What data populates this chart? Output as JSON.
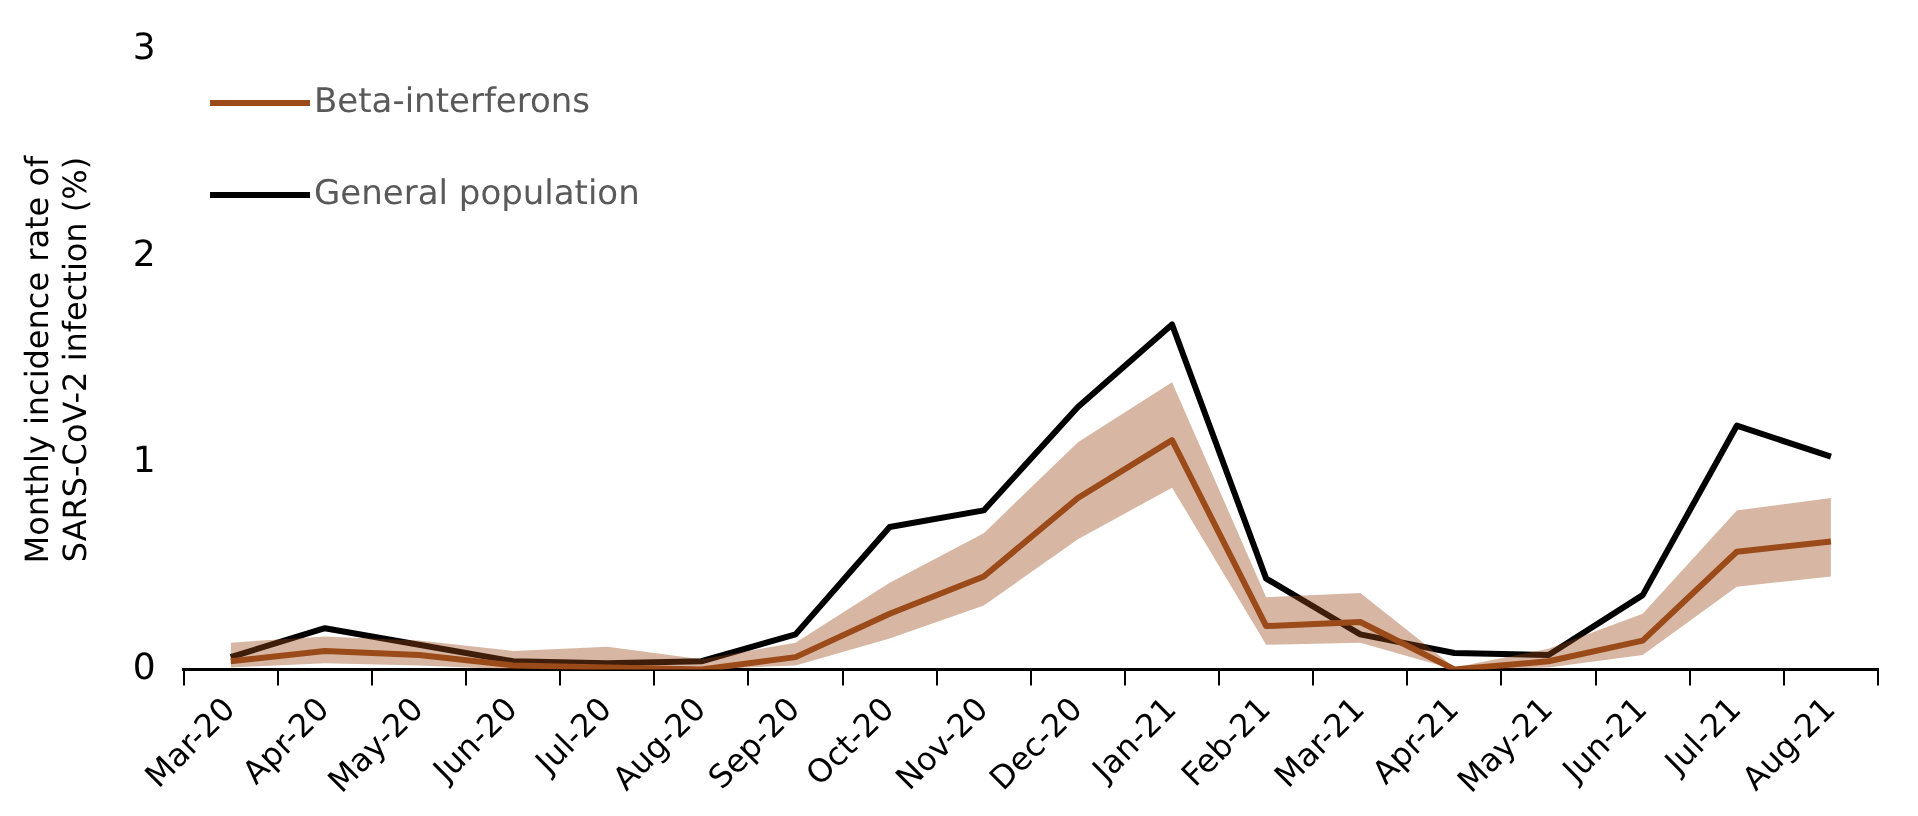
{
  "chart_data": {
    "type": "line",
    "ylabel": "Monthly incidence rate of SARS-CoV-2 infection (%)",
    "categories": [
      "Mar-20",
      "Apr-20",
      "May-20",
      "Jun-20",
      "Jul-20",
      "Aug-20",
      "Sep-20",
      "Oct-20",
      "Nov-20",
      "Dec-20",
      "Jan-21",
      "Feb-21",
      "Mar-21",
      "Apr-21",
      "May-21",
      "Jun-21",
      "Jul-21",
      "Aug-21"
    ],
    "series": [
      {
        "name": "Beta-interferons",
        "color": "#9c4a1a",
        "values": [
          0.04,
          0.09,
          0.07,
          0.02,
          0.01,
          0.0,
          0.06,
          0.27,
          0.45,
          0.83,
          1.11,
          0.21,
          0.23,
          0.0,
          0.04,
          0.14,
          0.57,
          0.62
        ],
        "lower": [
          0.01,
          0.03,
          0.02,
          0.0,
          0.0,
          0.0,
          0.02,
          0.15,
          0.31,
          0.63,
          0.88,
          0.12,
          0.13,
          0.0,
          0.01,
          0.07,
          0.4,
          0.45
        ],
        "upper": [
          0.13,
          0.16,
          0.14,
          0.09,
          0.11,
          0.05,
          0.13,
          0.42,
          0.66,
          1.1,
          1.39,
          0.35,
          0.37,
          0.01,
          0.1,
          0.27,
          0.77,
          0.83
        ]
      },
      {
        "name": "General population",
        "color": "#000000",
        "values": [
          0.06,
          0.2,
          0.12,
          0.04,
          0.03,
          0.04,
          0.17,
          0.69,
          0.77,
          1.27,
          1.67,
          0.44,
          0.17,
          0.08,
          0.07,
          0.36,
          1.18,
          1.03
        ]
      }
    ],
    "ylim": [
      0,
      3
    ],
    "yticks": [
      0,
      1,
      2,
      3
    ],
    "grid": false,
    "legend": "top left",
    "marker": "none",
    "line_style": "solid"
  }
}
